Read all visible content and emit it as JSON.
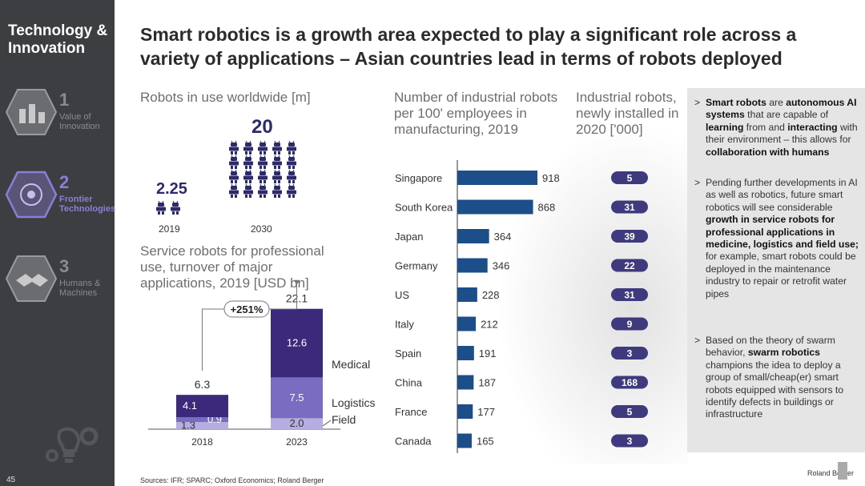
{
  "sidebar": {
    "title": "Technology & Innovation",
    "items": [
      {
        "num": "1",
        "label": "Value of Innovation"
      },
      {
        "num": "2",
        "label": "Frontier Technologies"
      },
      {
        "num": "3",
        "label": "Humans & Machines"
      }
    ],
    "page_number": "45"
  },
  "headline": "Smart robotics is a growth area expected to play a significant role across a variety of applications – Asian countries lead in terms of robots deployed",
  "footer": {
    "sources": "Sources: IFR; SPARC; Oxford Economics; Roland Berger",
    "logo_text": "Roland Berger"
  },
  "colors": {
    "navy": "#2c2a6b",
    "bar_blue": "#1c4f8a",
    "dark_purple": "#3b2a7c",
    "mid_purple": "#7a6cc0",
    "light_purple": "#b5aee0",
    "badge": "#3f3a7e"
  },
  "chart_data": [
    {
      "type": "pictogram",
      "title": "Robots in use worldwide [m]",
      "categories": [
        "2019",
        "2030"
      ],
      "values": [
        2.25,
        20
      ],
      "value_labels": [
        "2.25",
        "20"
      ]
    },
    {
      "type": "bar",
      "stacked": true,
      "title": "Service robots for professional use, turnover of major applications, 2019 [USD bn]",
      "categories": [
        "2018",
        "2023"
      ],
      "series": [
        {
          "name": "Field",
          "values": [
            1.3,
            2.0
          ],
          "labels": [
            "1.3",
            "2.0"
          ],
          "color": "#b5aee0"
        },
        {
          "name": "Logistics",
          "values": [
            0.9,
            7.5
          ],
          "labels": [
            "0.9",
            "7.5"
          ],
          "color": "#7a6cc0"
        },
        {
          "name": "Medical",
          "values": [
            4.1,
            12.6
          ],
          "labels": [
            "4.1",
            "12.6"
          ],
          "color": "#3b2a7c"
        }
      ],
      "totals": [
        6.3,
        22.1
      ],
      "total_labels": [
        "6.3",
        "22.1"
      ],
      "growth_annotation": "+251%"
    },
    {
      "type": "bar",
      "orientation": "horizontal",
      "title": "Number of industrial robots per 100' employees in manufacturing, 2019",
      "categories": [
        "Singapore",
        "South Korea",
        "Japan",
        "Germany",
        "US",
        "Italy",
        "Spain",
        "China",
        "France",
        "Canada"
      ],
      "values": [
        918,
        868,
        364,
        346,
        228,
        212,
        191,
        187,
        177,
        165
      ],
      "color": "#1c4f8a"
    },
    {
      "type": "table",
      "title": "Industrial robots, newly installed in 2020 ['000]",
      "categories": [
        "Singapore",
        "South Korea",
        "Japan",
        "Germany",
        "US",
        "Italy",
        "Spain",
        "China",
        "France",
        "Canada"
      ],
      "values": [
        5,
        31,
        39,
        22,
        31,
        9,
        3,
        168,
        5,
        3
      ]
    }
  ],
  "bullets": [
    {
      "parts": [
        {
          "t": "Smart robots",
          "b": true
        },
        {
          "t": " are ",
          "b": false
        },
        {
          "t": "autonomous AI systems",
          "b": true
        },
        {
          "t": " that are capable of ",
          "b": false
        },
        {
          "t": "learning",
          "b": true
        },
        {
          "t": " from and ",
          "b": false
        },
        {
          "t": "interacting",
          "b": true
        },
        {
          "t": " with their environment – this allows for ",
          "b": false
        },
        {
          "t": "collaboration with humans",
          "b": true
        }
      ]
    },
    {
      "parts": [
        {
          "t": "Pending further developments in AI as well as robotics, future smart robotics will see considerable ",
          "b": false
        },
        {
          "t": "growth in service robots for professional applications in medicine, logistics and field use;",
          "b": true
        },
        {
          "t": " for example, smart robots could be deployed in the maintenance industry to repair or retrofit water pipes",
          "b": false
        }
      ]
    },
    {
      "parts": [
        {
          "t": "Based on the theory of swarm behavior, ",
          "b": false
        },
        {
          "t": "swarm robotics",
          "b": true
        },
        {
          "t": " champions the idea to deploy a group of small/cheap(er) smart robots equipped with sensors to identify defects in buildings or infrastructure",
          "b": false
        }
      ]
    }
  ]
}
